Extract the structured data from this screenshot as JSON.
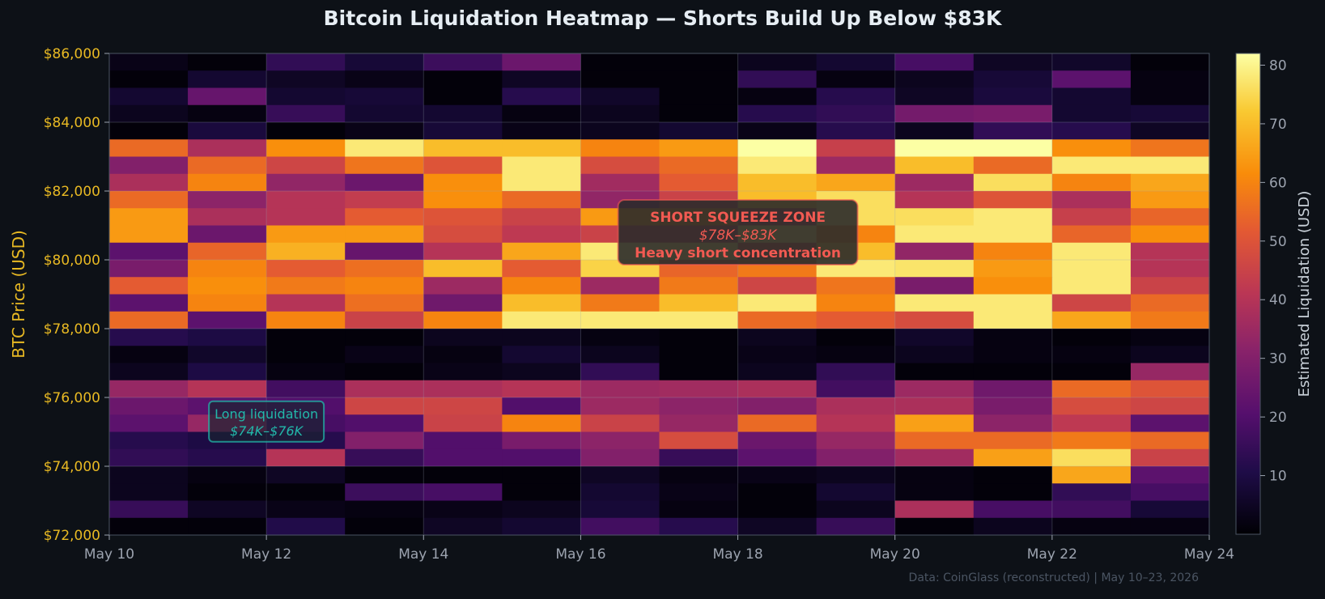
{
  "title": "Bitcoin Liquidation Heatmap — Shorts Build Up Below $83K",
  "footer": "Data: CoinGlass (reconstructed)  |  May 10–23, 2026",
  "chart_data": {
    "type": "heatmap",
    "title": "Bitcoin Liquidation Heatmap — Shorts Build Up Below $83K",
    "ylabel": "BTC Price (USD)",
    "xlabel": "",
    "colorbar_label": "Estimated Liquidation (USD)",
    "colormap": "inferno",
    "color_range": [
      0,
      82
    ],
    "colorbar_ticks": [
      "10",
      "20",
      "30",
      "40",
      "50",
      "60",
      "70",
      "80"
    ],
    "ylim": [
      72000,
      86000
    ],
    "y_ticks": [
      "$72,000",
      "$74,000",
      "$76,000",
      "$78,000",
      "$80,000",
      "$82,000",
      "$84,000",
      "$86,000"
    ],
    "x_ticks": [
      "May 10",
      "May 12",
      "May 14",
      "May 16",
      "May 18",
      "May 20",
      "May 22",
      "May 24"
    ],
    "x_days": [
      "May 10",
      "May 11",
      "May 12",
      "May 13",
      "May 14",
      "May 15",
      "May 16",
      "May 17",
      "May 18",
      "May 19",
      "May 20",
      "May 21",
      "May 22",
      "May 23"
    ],
    "y_bin_size": 500,
    "y_bins_low_to_high": [
      "72000",
      "72500",
      "73000",
      "73500",
      "74000",
      "74500",
      "75000",
      "75500",
      "76000",
      "76500",
      "77000",
      "77500",
      "78000",
      "78500",
      "79000",
      "79500",
      "80000",
      "80500",
      "81000",
      "81500",
      "82000",
      "82500",
      "83000",
      "83500",
      "84000",
      "84500",
      "85000",
      "85500"
    ],
    "grid": true,
    "values_rows_high_to_low": [
      [
        3,
        1,
        14,
        8,
        16,
        25,
        1,
        1,
        4,
        7,
        18,
        5,
        6,
        1
      ],
      [
        1,
        7,
        5,
        3,
        1,
        5,
        1,
        1,
        14,
        2,
        4,
        8,
        22,
        2
      ],
      [
        7,
        24,
        7,
        8,
        1,
        12,
        6,
        1,
        2,
        12,
        5,
        9,
        7,
        2
      ],
      [
        4,
        2,
        15,
        7,
        7,
        2,
        4,
        1,
        12,
        14,
        27,
        28,
        7,
        8
      ],
      [
        1,
        9,
        1,
        3,
        8,
        3,
        4,
        7,
        3,
        12,
        4,
        14,
        12,
        5
      ],
      [
        55,
        38,
        62,
        78,
        70,
        70,
        60,
        64,
        82,
        44,
        82,
        82,
        62,
        57
      ],
      [
        30,
        55,
        46,
        57,
        50,
        78,
        48,
        55,
        78,
        35,
        70,
        55,
        78,
        78
      ],
      [
        38,
        60,
        33,
        25,
        62,
        78,
        36,
        52,
        70,
        66,
        35,
        76,
        60,
        66
      ],
      [
        55,
        32,
        40,
        43,
        62,
        55,
        33,
        45,
        70,
        76,
        40,
        50,
        38,
        64
      ],
      [
        64,
        38,
        40,
        52,
        50,
        45,
        64,
        60,
        45,
        76,
        76,
        78,
        44,
        54
      ],
      [
        64,
        25,
        64,
        64,
        48,
        42,
        45,
        44,
        76,
        60,
        78,
        78,
        54,
        62
      ],
      [
        22,
        54,
        68,
        24,
        40,
        66,
        78,
        76,
        50,
        70,
        33,
        60,
        78,
        40
      ],
      [
        28,
        60,
        52,
        56,
        70,
        52,
        74,
        54,
        58,
        78,
        77,
        64,
        78,
        40
      ],
      [
        52,
        62,
        58,
        60,
        35,
        60,
        35,
        58,
        46,
        57,
        28,
        62,
        78,
        45
      ],
      [
        22,
        60,
        40,
        56,
        26,
        70,
        58,
        70,
        78,
        60,
        78,
        78,
        46,
        55
      ],
      [
        55,
        22,
        60,
        45,
        60,
        78,
        78,
        78,
        55,
        52,
        48,
        78,
        66,
        58
      ],
      [
        12,
        10,
        1,
        1,
        4,
        4,
        2,
        1,
        4,
        1,
        6,
        2,
        1,
        2
      ],
      [
        2,
        6,
        1,
        3,
        2,
        7,
        4,
        1,
        3,
        2,
        4,
        2,
        2,
        4
      ],
      [
        4,
        10,
        2,
        1,
        3,
        4,
        14,
        1,
        4,
        14,
        1,
        1,
        1,
        34
      ],
      [
        34,
        40,
        17,
        38,
        38,
        40,
        35,
        36,
        38,
        17,
        35,
        26,
        55,
        50
      ],
      [
        25,
        22,
        20,
        46,
        46,
        20,
        35,
        32,
        30,
        38,
        38,
        28,
        48,
        46
      ],
      [
        22,
        34,
        18,
        20,
        45,
        60,
        45,
        34,
        55,
        40,
        65,
        32,
        42,
        22
      ],
      [
        12,
        10,
        12,
        30,
        20,
        28,
        32,
        48,
        25,
        34,
        55,
        55,
        58,
        55
      ],
      [
        14,
        12,
        40,
        15,
        20,
        20,
        30,
        15,
        22,
        30,
        36,
        65,
        76,
        45
      ],
      [
        4,
        2,
        5,
        1,
        1,
        1,
        5,
        2,
        3,
        4,
        2,
        1,
        66,
        22
      ],
      [
        4,
        1,
        1,
        16,
        18,
        1,
        7,
        3,
        1,
        7,
        2,
        1,
        14,
        18
      ],
      [
        15,
        5,
        3,
        2,
        3,
        4,
        8,
        2,
        1,
        4,
        38,
        18,
        17,
        8
      ],
      [
        1,
        1,
        11,
        1,
        5,
        7,
        17,
        12,
        5,
        15,
        1,
        4,
        2,
        2
      ]
    ],
    "annotations": [
      {
        "lines": [
          "SHORT SQUEEZE ZONE",
          "$78K–$83K",
          "Heavy short concentration"
        ],
        "color": "#f25a52",
        "anchor_day": 18,
        "anchor_price": 80800
      },
      {
        "lines": [
          "Long liquidation",
          "$74K–$76K"
        ],
        "color": "#22b8aa",
        "anchor_day": 12,
        "anchor_price": 75300
      }
    ]
  },
  "colors": {
    "background": "#0d1117",
    "tick_label_y": "#e8b923",
    "tick_label_x": "#9ca3af",
    "squeeze": "#f25a52",
    "long": "#22b8aa"
  }
}
